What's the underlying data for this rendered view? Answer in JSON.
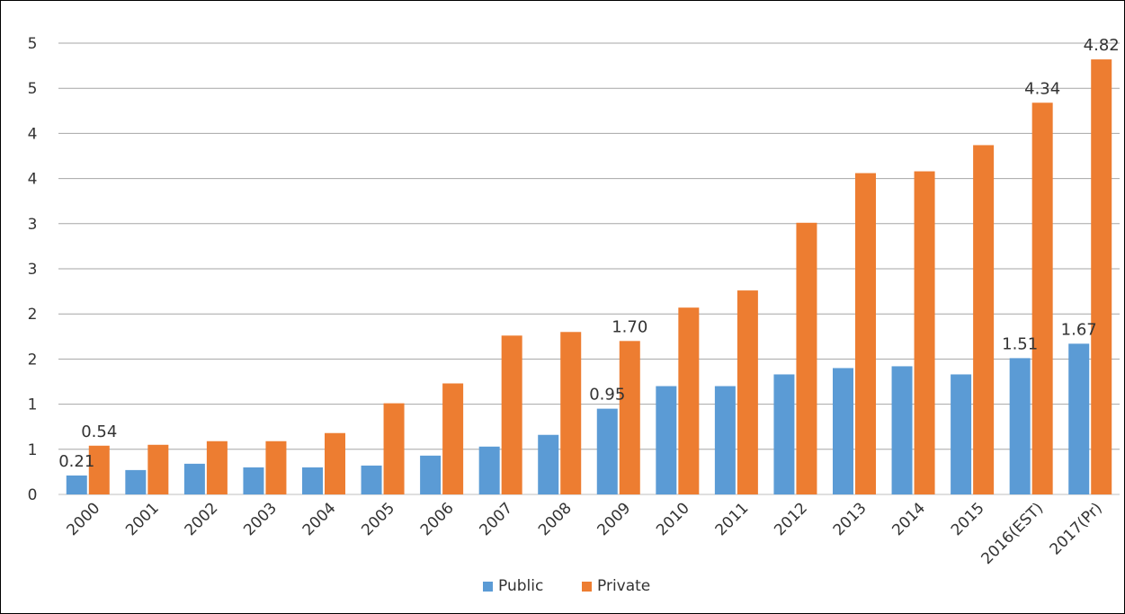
{
  "chart_data": {
    "type": "bar",
    "categories": [
      "2000",
      "2001",
      "2002",
      "2003",
      "2004",
      "2005",
      "2006",
      "2007",
      "2008",
      "2009",
      "2010",
      "2011",
      "2012",
      "2013",
      "2014",
      "2015",
      "2016(EST)",
      "2017(Pr)"
    ],
    "series": [
      {
        "name": "Public",
        "color": "#5b9bd5",
        "values": [
          0.21,
          0.27,
          0.34,
          0.3,
          0.3,
          0.32,
          0.43,
          0.53,
          0.66,
          0.95,
          1.2,
          1.2,
          1.33,
          1.4,
          1.42,
          1.33,
          1.51,
          1.67
        ]
      },
      {
        "name": "Private",
        "color": "#ed7d31",
        "values": [
          0.54,
          0.55,
          0.59,
          0.59,
          0.68,
          1.01,
          1.23,
          1.76,
          1.8,
          1.7,
          2.07,
          2.26,
          3.01,
          3.56,
          3.58,
          3.87,
          4.34,
          4.82
        ]
      }
    ],
    "y_tick_labels": [
      "0",
      "1",
      "1",
      "2",
      "2",
      "3",
      "3",
      "4",
      "4",
      "5",
      "5"
    ],
    "ylim": [
      0,
      5
    ],
    "grid": true,
    "legend": "bottom-center",
    "data_labels": [
      {
        "series": 0,
        "index": 0,
        "text": "0.21"
      },
      {
        "series": 1,
        "index": 0,
        "text": "0.54"
      },
      {
        "series": 0,
        "index": 9,
        "text": "0.95"
      },
      {
        "series": 1,
        "index": 9,
        "text": "1.70"
      },
      {
        "series": 0,
        "index": 16,
        "text": "1.51"
      },
      {
        "series": 1,
        "index": 16,
        "text": "4.34"
      },
      {
        "series": 0,
        "index": 17,
        "text": "1.67"
      },
      {
        "series": 1,
        "index": 17,
        "text": "4.82"
      }
    ]
  }
}
